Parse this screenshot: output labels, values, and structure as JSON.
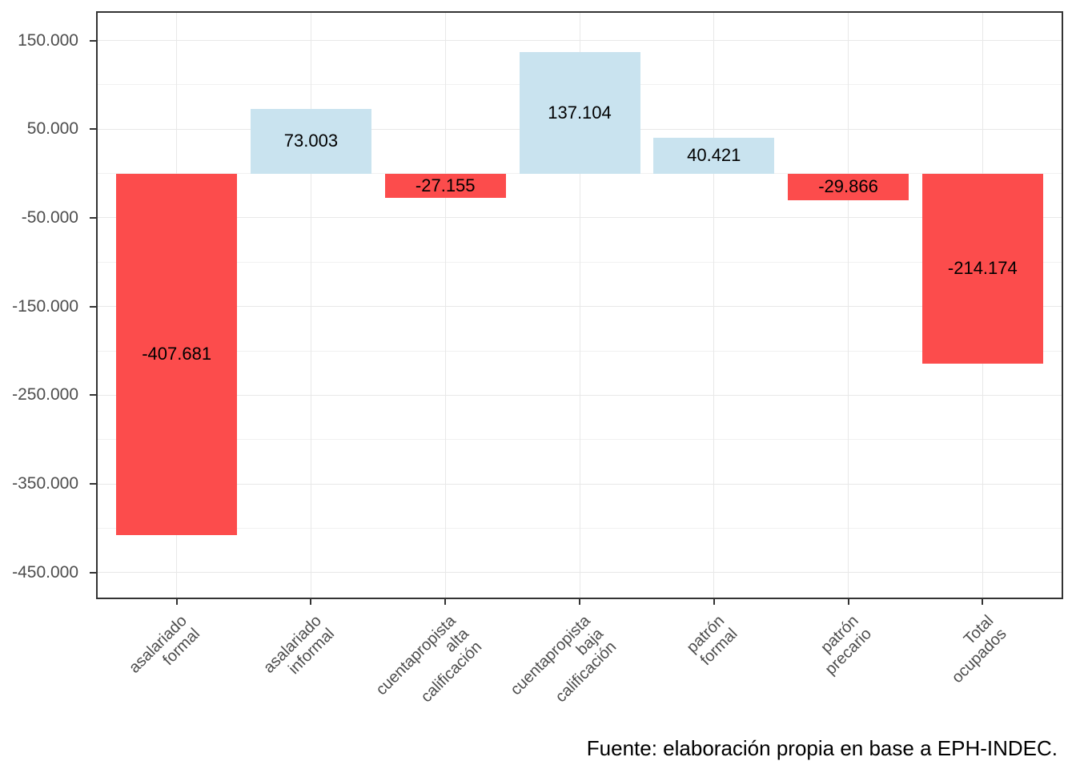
{
  "figure": {
    "caption": "Fuente: elaboración propia en base a EPH-INDEC."
  },
  "chart_data": {
    "type": "bar",
    "title": "",
    "xlabel": "",
    "ylabel": "",
    "legend": false,
    "grid": true,
    "categories": [
      [
        "asalariado",
        "formal"
      ],
      [
        "asalariado",
        "informal"
      ],
      [
        "cuentapropista",
        "alta",
        "calificación"
      ],
      [
        "cuentapropista",
        "baja",
        "calificación"
      ],
      [
        "patrón formal"
      ],
      [
        "patrón precario"
      ],
      [
        "Total ocupados"
      ]
    ],
    "values": [
      -407681,
      73003,
      -27155,
      137104,
      40421,
      -29866,
      -214174
    ],
    "value_labels": [
      "-407.681",
      "73.003",
      "-27.155",
      "137.104",
      "40.421",
      "-29.866",
      "-214.174"
    ],
    "colors": {
      "positive_fill": "#C9E3EF",
      "negative_fill": "#FC4C4C",
      "grid_major": "#E8E8E8",
      "grid_minor": "#F1F1F1",
      "panel_border": "#333333",
      "axis_text": "#4D4D4D",
      "bar_label_text": "#000000"
    },
    "y_axis": {
      "min": -480000,
      "max": 183000,
      "major_ticks": [
        150000,
        50000,
        -50000,
        -150000,
        -250000,
        -350000,
        -450000
      ],
      "major_tick_labels": [
        "150.000",
        "50.000",
        "-50.000",
        "-150.000",
        "-250.000",
        "-350.000",
        "-450.000"
      ],
      "minor_ticks": [
        100000,
        0,
        -100000,
        -200000,
        -300000,
        -400000
      ]
    }
  }
}
